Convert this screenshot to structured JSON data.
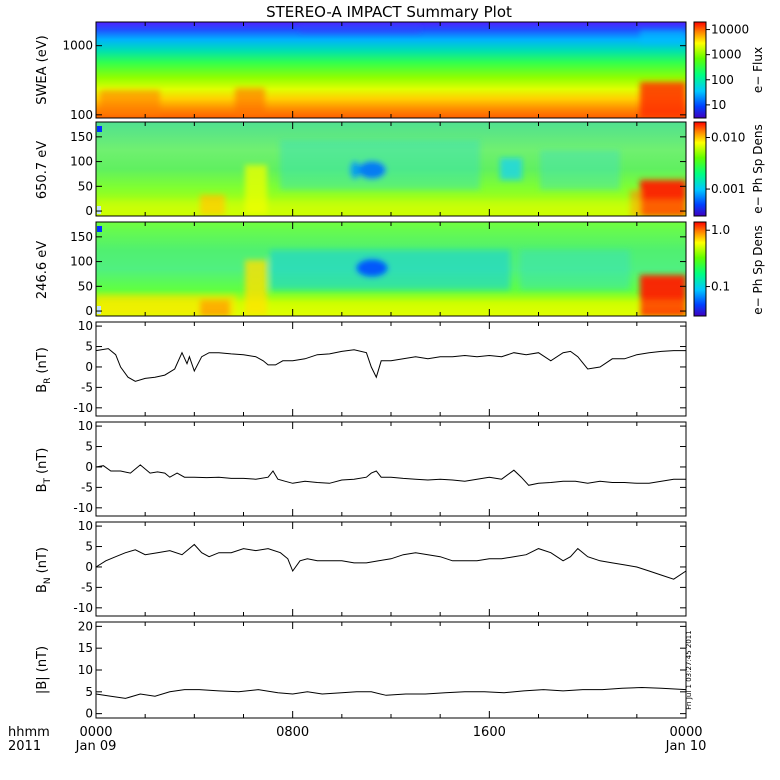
{
  "title": "STEREO-A IMPACT Summary Plot",
  "stamp": "Fri Jul 1 03:27:45 2011",
  "time_axis": {
    "label_line1": "hhmm",
    "label_line2": "2011",
    "ticks": [
      {
        "hour": 0,
        "label": "0000",
        "sub": "Jan 09"
      },
      {
        "hour": 8,
        "label": "0800",
        "sub": ""
      },
      {
        "hour": 16,
        "label": "1600",
        "sub": ""
      },
      {
        "hour": 24,
        "label": "0000",
        "sub": "Jan 10"
      }
    ],
    "range_hours": [
      0,
      24
    ]
  },
  "chart_data": [
    {
      "type": "heatmap",
      "ylabel": "SWEA (eV)",
      "yscale": "log",
      "ylim": [
        90,
        2200
      ],
      "yticks": [
        100,
        1000
      ],
      "ytick_labels": [
        "100",
        "1000"
      ],
      "colorbar": {
        "label": "e− Flux",
        "scale": "log",
        "range": [
          3,
          20000
        ],
        "ticks": [
          10,
          100,
          1000,
          10000
        ],
        "tick_labels": [
          "10",
          "100",
          "1000",
          "10000"
        ]
      }
    },
    {
      "type": "heatmap",
      "ylabel": "650.7 eV",
      "ylim": [
        -10,
        180
      ],
      "yticks": [
        0,
        50,
        100,
        150
      ],
      "colorbar": {
        "label": "e− Ph Sp Dens",
        "scale": "log",
        "range": [
          0.0003,
          0.02
        ],
        "ticks": [
          0.001,
          0.01
        ],
        "tick_labels": [
          "0.001",
          "0.010"
        ]
      }
    },
    {
      "type": "heatmap",
      "ylabel": "246.6 eV",
      "ylim": [
        -10,
        180
      ],
      "yticks": [
        0,
        50,
        100,
        150
      ],
      "colorbar": {
        "label": "e− Ph Sp Dens",
        "scale": "log",
        "range": [
          0.03,
          1.4
        ],
        "ticks": [
          0.1,
          1.0
        ],
        "tick_labels": [
          "0.1",
          "1.0"
        ]
      }
    },
    {
      "type": "line",
      "ylabel_main": "B",
      "ylabel_sub": "R",
      "ylabel_unit": "(nT)",
      "ylim": [
        -12,
        11
      ],
      "yticks": [
        -10,
        -5,
        0,
        5,
        10
      ],
      "x": [
        0,
        0.5,
        0.8,
        1.0,
        1.3,
        1.6,
        2.0,
        2.4,
        2.8,
        3.2,
        3.5,
        3.7,
        3.8,
        4.0,
        4.3,
        4.6,
        5.0,
        5.5,
        6.0,
        6.5,
        6.8,
        7.0,
        7.3,
        7.6,
        8.0,
        8.5,
        9.0,
        9.5,
        10.0,
        10.5,
        11.0,
        11.2,
        11.4,
        11.6,
        12.0,
        12.5,
        13.0,
        13.5,
        14.0,
        14.5,
        15.0,
        15.5,
        16.0,
        16.5,
        17.0,
        17.5,
        18.0,
        18.5,
        19.0,
        19.3,
        19.6,
        20.0,
        20.5,
        21.0,
        21.5,
        22.0,
        22.5,
        23.0,
        23.5,
        24.0
      ],
      "y": [
        4,
        4.5,
        3,
        0,
        -2.5,
        -3.5,
        -2.8,
        -2.5,
        -2,
        -0.5,
        3.5,
        0.8,
        2.5,
        -1,
        2.5,
        3.5,
        3.5,
        3.2,
        3,
        2.5,
        1.5,
        0.5,
        0.5,
        1.5,
        1.5,
        2,
        3,
        3.2,
        3.8,
        4.2,
        3.5,
        0,
        -2.5,
        1.5,
        1.5,
        2,
        2.5,
        2,
        2.5,
        2.5,
        2.8,
        2.5,
        2.8,
        2.5,
        3.5,
        3,
        3.5,
        1.5,
        3.5,
        3.8,
        2.5,
        -0.5,
        0,
        2,
        2,
        3,
        3.5,
        3.8,
        4,
        4
      ]
    },
    {
      "type": "line",
      "ylabel_main": "B",
      "ylabel_sub": "T",
      "ylabel_unit": "(nT)",
      "ylim": [
        -12,
        11
      ],
      "yticks": [
        -10,
        -5,
        0,
        5,
        10
      ],
      "x": [
        0,
        0.3,
        0.6,
        1.0,
        1.4,
        1.8,
        2.2,
        2.5,
        2.8,
        3.0,
        3.3,
        3.6,
        4.0,
        4.5,
        5.0,
        5.5,
        6.0,
        6.5,
        7.0,
        7.2,
        7.4,
        7.7,
        8.0,
        8.5,
        9.0,
        9.5,
        10.0,
        10.5,
        11.0,
        11.2,
        11.4,
        11.6,
        12.0,
        12.5,
        13.0,
        13.5,
        14.0,
        14.5,
        15.0,
        15.5,
        16.0,
        16.5,
        17.0,
        17.3,
        17.6,
        18.0,
        18.5,
        19.0,
        19.5,
        20.0,
        20.5,
        21.0,
        21.5,
        22.0,
        22.5,
        23.0,
        23.5,
        24.0
      ],
      "y": [
        0,
        0.3,
        -1,
        -1,
        -1.5,
        0.5,
        -1.5,
        -1.2,
        -1.5,
        -2.5,
        -1.5,
        -2.5,
        -2.5,
        -2.6,
        -2.5,
        -2.8,
        -2.8,
        -3,
        -2.5,
        -1,
        -3,
        -3.5,
        -4,
        -3.5,
        -3.8,
        -4,
        -3.2,
        -3,
        -2.5,
        -1.5,
        -1,
        -2.5,
        -2.5,
        -2.8,
        -3,
        -3.2,
        -3,
        -3.2,
        -3.5,
        -3,
        -2.5,
        -3,
        -0.8,
        -2.5,
        -4.5,
        -4,
        -3.8,
        -3.5,
        -3.5,
        -4,
        -3.5,
        -3.8,
        -3.8,
        -4,
        -4,
        -3.5,
        -3,
        -3
      ]
    },
    {
      "type": "line",
      "ylabel_main": "B",
      "ylabel_sub": "N",
      "ylabel_unit": "(nT)",
      "ylim": [
        -12,
        11
      ],
      "yticks": [
        -10,
        -5,
        0,
        5,
        10
      ],
      "x": [
        0,
        0.4,
        0.8,
        1.2,
        1.6,
        2.0,
        2.5,
        3.0,
        3.5,
        4.0,
        4.3,
        4.6,
        5.0,
        5.5,
        6.0,
        6.5,
        7.0,
        7.5,
        7.8,
        8.0,
        8.3,
        8.6,
        9.0,
        9.5,
        10.0,
        10.5,
        11.0,
        11.5,
        12.0,
        12.5,
        13.0,
        13.5,
        14.0,
        14.5,
        15.0,
        15.5,
        16.0,
        16.5,
        17.0,
        17.5,
        18.0,
        18.5,
        19.0,
        19.3,
        19.6,
        20.0,
        20.5,
        21.0,
        21.5,
        22.0,
        22.5,
        23.0,
        23.5,
        24.0
      ],
      "y": [
        0,
        1.5,
        2.5,
        3.5,
        4.2,
        3,
        3.5,
        4,
        3,
        5.5,
        3.5,
        2.5,
        3.5,
        3.5,
        4.5,
        4,
        4.5,
        3.5,
        2,
        -1,
        1.5,
        2,
        1.5,
        1.5,
        1.5,
        1,
        1,
        1.5,
        2,
        3,
        3.5,
        3,
        2.5,
        1.5,
        1.5,
        1.5,
        2,
        2,
        2.5,
        3,
        4.5,
        3.5,
        1.5,
        2.5,
        4.5,
        2.5,
        1.5,
        1,
        0.5,
        0,
        -1,
        -2,
        -3,
        -1
      ]
    },
    {
      "type": "line",
      "ylabel": "|B| (nT)",
      "ylim": [
        -1,
        21
      ],
      "yticks": [
        0,
        5,
        10,
        15,
        20
      ],
      "x": [
        0,
        0.6,
        1.2,
        1.8,
        2.4,
        3.0,
        3.6,
        4.2,
        5.0,
        5.8,
        6.6,
        7.4,
        8.0,
        8.6,
        9.2,
        10.0,
        10.6,
        11.2,
        11.8,
        12.6,
        13.4,
        14.2,
        15.0,
        15.8,
        16.6,
        17.4,
        18.2,
        19.0,
        19.8,
        20.6,
        21.4,
        22.2,
        23.0,
        24.0
      ],
      "y": [
        4.5,
        4,
        3.5,
        4.5,
        4,
        5,
        5.5,
        5.5,
        5.2,
        5,
        5.5,
        4.8,
        4.5,
        5,
        4.5,
        4.8,
        5,
        5,
        4.2,
        4.5,
        4.5,
        4.8,
        5,
        5,
        4.8,
        5.2,
        5.5,
        5.2,
        5.5,
        5.5,
        5.8,
        6,
        5.8,
        5.5
      ]
    }
  ]
}
